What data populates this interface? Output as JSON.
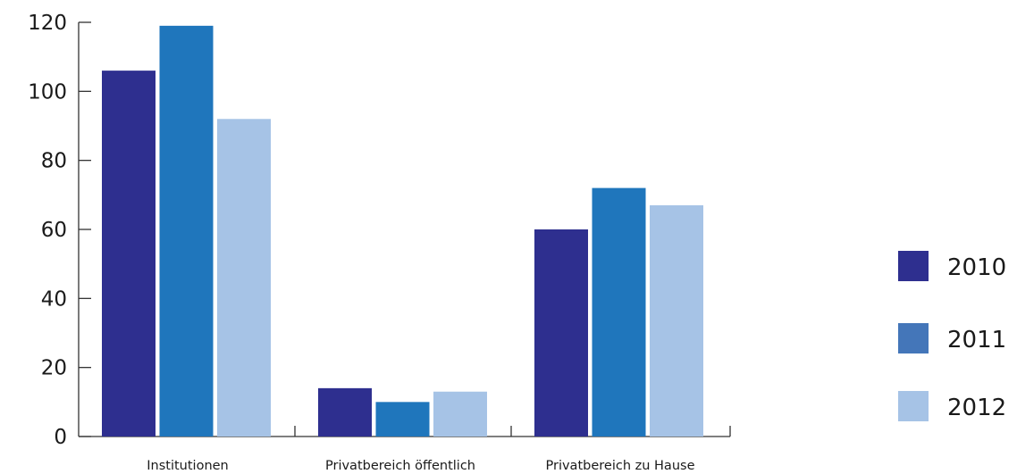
{
  "chart_data": {
    "type": "bar",
    "title": "",
    "xlabel": "",
    "ylabel": "",
    "categories": [
      "Institutionen",
      "Privatbereich öffentlich",
      "Privatbereich zu Hause"
    ],
    "series": [
      {
        "name": "2010",
        "color": "#2e2f8f",
        "values": [
          106,
          14,
          60
        ]
      },
      {
        "name": "2011",
        "color": "#1f76bc",
        "values": [
          119,
          10,
          72
        ]
      },
      {
        "name": "2012",
        "color": "#a6c3e6",
        "values": [
          92,
          13,
          67
        ]
      }
    ],
    "legend_swatch_colors": [
      "#2e2f8f",
      "#4476b9",
      "#a6c3e6"
    ],
    "ylim": [
      0,
      120
    ],
    "yticks": [
      0,
      20,
      40,
      60,
      80,
      100,
      120
    ],
    "ytick_labels": [
      "0",
      "20",
      "40",
      "60",
      "80",
      "100",
      "120"
    ],
    "grid": false,
    "legend_position": "right"
  }
}
